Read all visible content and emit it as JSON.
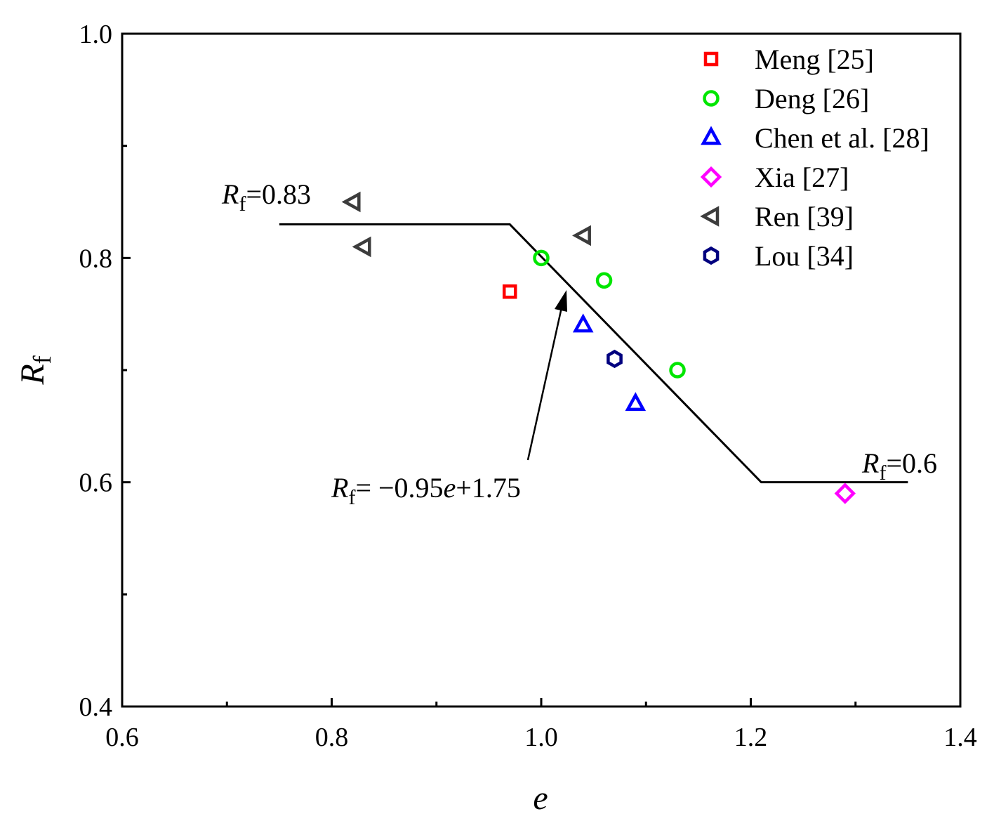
{
  "chart_data": {
    "type": "scatter",
    "xlabel": "e",
    "ylabel": "R",
    "ylabel_sub": "f",
    "xlim": [
      0.6,
      1.4
    ],
    "ylim": [
      0.4,
      1.0
    ],
    "x_ticks": [
      0.6,
      0.8,
      1.0,
      1.2,
      1.4
    ],
    "x_tick_labels": [
      "0.6",
      "0.8",
      "1.0",
      "1.2",
      "1.4"
    ],
    "y_ticks": [
      0.4,
      0.6,
      0.8,
      1.0
    ],
    "y_tick_labels": [
      "0.4",
      "0.6",
      "0.8",
      "1.0"
    ],
    "x_minor_ticks": [
      0.7,
      0.9,
      1.1,
      1.3
    ],
    "y_minor_ticks": [
      0.5,
      0.7,
      0.9
    ],
    "legend_position": "top-right",
    "series": [
      {
        "name": "Meng [25]",
        "marker": "square",
        "color": "#ff0000",
        "points": [
          [
            0.97,
            0.77
          ]
        ]
      },
      {
        "name": "Deng [26]",
        "marker": "circle",
        "color": "#00e600",
        "points": [
          [
            1.0,
            0.8
          ],
          [
            1.06,
            0.78
          ],
          [
            1.13,
            0.7
          ]
        ]
      },
      {
        "name": "Chen et al. [28]",
        "marker": "triangle-up",
        "color": "#0000ff",
        "points": [
          [
            1.04,
            0.74
          ],
          [
            1.09,
            0.67
          ]
        ]
      },
      {
        "name": "Xia [27]",
        "marker": "diamond",
        "color": "#ff00ff",
        "points": [
          [
            1.29,
            0.59
          ]
        ]
      },
      {
        "name": "Ren [39]",
        "marker": "triangle-left",
        "color": "#3c3c3c",
        "points": [
          [
            0.82,
            0.85
          ],
          [
            0.83,
            0.81
          ],
          [
            1.04,
            0.82
          ]
        ]
      },
      {
        "name": "Lou [34]",
        "marker": "hexagon",
        "color": "#00007f",
        "points": [
          [
            1.07,
            0.71
          ]
        ]
      }
    ],
    "fit_line": {
      "color": "#000000",
      "points": [
        [
          0.75,
          0.83
        ],
        [
          0.97,
          0.83
        ],
        [
          1.21,
          0.6
        ],
        [
          1.35,
          0.6
        ]
      ]
    },
    "annotations": {
      "upper": {
        "var": "R",
        "sub": "f",
        "text": "=0.83"
      },
      "lower": {
        "var": "R",
        "sub": "f",
        "text": "=0.6"
      },
      "equation": {
        "var": "R",
        "sub": "f",
        "text1": "= −0.95",
        "evar": "e",
        "text2": "+1.75"
      }
    }
  }
}
